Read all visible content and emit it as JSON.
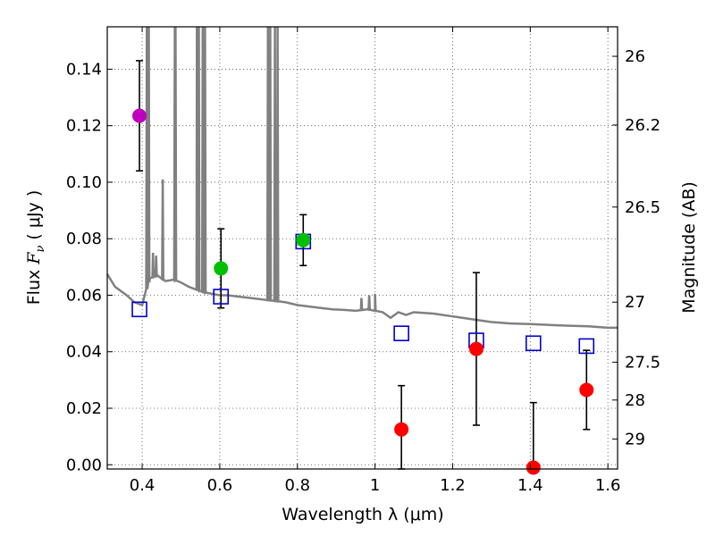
{
  "chart_data": {
    "type": "scatter",
    "title": "",
    "xlabel": "Wavelength  λ (μm)",
    "ylabel_prefix": "Flux  ",
    "ylabel_symbol": "F",
    "ylabel_subscript": "ν",
    "ylabel_units": "  ( μJy )",
    "y2label": "Magnitude (AB)",
    "xlim": [
      0.31,
      1.625
    ],
    "ylim": [
      -0.0015,
      0.155
    ],
    "grid": true,
    "x_ticks": [
      {
        "value": 0.4,
        "label": "0.4"
      },
      {
        "value": 0.6,
        "label": "0.6"
      },
      {
        "value": 0.8,
        "label": "0.8"
      },
      {
        "value": 1.0,
        "label": "1"
      },
      {
        "value": 1.2,
        "label": "1.2"
      },
      {
        "value": 1.4,
        "label": "1.4"
      },
      {
        "value": 1.6,
        "label": "1.6"
      }
    ],
    "y_ticks": [
      {
        "value": 0.0,
        "label": "0.00"
      },
      {
        "value": 0.02,
        "label": "0.02"
      },
      {
        "value": 0.04,
        "label": "0.04"
      },
      {
        "value": 0.06,
        "label": "0.06"
      },
      {
        "value": 0.08,
        "label": "0.08"
      },
      {
        "value": 0.1,
        "label": "0.10"
      },
      {
        "value": 0.12,
        "label": "0.12"
      },
      {
        "value": 0.14,
        "label": "0.14"
      }
    ],
    "y2_ticks": [
      {
        "value": 26,
        "label": "26"
      },
      {
        "value": 26.2,
        "label": "26.2"
      },
      {
        "value": 26.5,
        "label": "26.5"
      },
      {
        "value": 27,
        "label": "27"
      },
      {
        "value": 27.5,
        "label": "27.5"
      },
      {
        "value": 28,
        "label": "28"
      },
      {
        "value": 29,
        "label": "29"
      }
    ],
    "observed": [
      {
        "x": 0.393,
        "y": 0.1235,
        "err": 0.0195,
        "color": "#bf00bf"
      },
      {
        "x": 0.603,
        "y": 0.0695,
        "err": 0.014,
        "color": "#00bf00"
      },
      {
        "x": 0.815,
        "y": 0.0795,
        "err": 0.009,
        "color": "#00bf00"
      },
      {
        "x": 1.068,
        "y": 0.0125,
        "err": 0.0155,
        "color": "#ff0000"
      },
      {
        "x": 1.261,
        "y": 0.041,
        "err": 0.027,
        "color": "#ff0000"
      },
      {
        "x": 1.408,
        "y": -0.001,
        "err": 0.023,
        "color": "#ff0000"
      },
      {
        "x": 1.545,
        "y": 0.0265,
        "err": 0.014,
        "color": "#ff0000"
      }
    ],
    "model_photometry": {
      "color": "#0000cc",
      "points": [
        {
          "x": 0.393,
          "y": 0.055
        },
        {
          "x": 0.603,
          "y": 0.0595
        },
        {
          "x": 0.815,
          "y": 0.079
        },
        {
          "x": 1.068,
          "y": 0.0465
        },
        {
          "x": 1.261,
          "y": 0.044
        },
        {
          "x": 1.408,
          "y": 0.043
        },
        {
          "x": 1.545,
          "y": 0.042
        }
      ]
    },
    "sed_model": {
      "color": "#808080",
      "continuum": [
        [
          0.31,
          0.0675
        ],
        [
          0.33,
          0.063
        ],
        [
          0.36,
          0.06
        ],
        [
          0.38,
          0.0575
        ],
        [
          0.4,
          0.0565
        ],
        [
          0.42,
          0.066
        ],
        [
          0.44,
          0.067
        ],
        [
          0.46,
          0.065
        ],
        [
          0.48,
          0.0655
        ],
        [
          0.5,
          0.0645
        ],
        [
          0.52,
          0.063
        ],
        [
          0.54,
          0.062
        ],
        [
          0.56,
          0.061
        ],
        [
          0.58,
          0.0605
        ],
        [
          0.6,
          0.06
        ],
        [
          0.62,
          0.06
        ],
        [
          0.65,
          0.0595
        ],
        [
          0.68,
          0.059
        ],
        [
          0.71,
          0.0585
        ],
        [
          0.74,
          0.058
        ],
        [
          0.77,
          0.0575
        ],
        [
          0.8,
          0.0565
        ],
        [
          0.83,
          0.056
        ],
        [
          0.86,
          0.0555
        ],
        [
          0.89,
          0.055
        ],
        [
          0.92,
          0.0548
        ],
        [
          0.95,
          0.0545
        ],
        [
          0.98,
          0.055
        ],
        [
          1.0,
          0.0545
        ],
        [
          1.02,
          0.054
        ],
        [
          1.04,
          0.052
        ],
        [
          1.06,
          0.054
        ],
        [
          1.08,
          0.053
        ],
        [
          1.1,
          0.054
        ],
        [
          1.15,
          0.0535
        ],
        [
          1.2,
          0.0525
        ],
        [
          1.25,
          0.0515
        ],
        [
          1.3,
          0.0505
        ],
        [
          1.35,
          0.05
        ],
        [
          1.4,
          0.0498
        ],
        [
          1.45,
          0.0495
        ],
        [
          1.5,
          0.0492
        ],
        [
          1.55,
          0.049
        ],
        [
          1.6,
          0.0485
        ],
        [
          1.625,
          0.0485
        ]
      ],
      "lines": [
        {
          "x": 0.412,
          "y": 0.155
        },
        {
          "x": 0.417,
          "y": 0.155
        },
        {
          "x": 0.428,
          "y": 0.075
        },
        {
          "x": 0.436,
          "y": 0.074
        },
        {
          "x": 0.453,
          "y": 0.101
        },
        {
          "x": 0.484,
          "y": 0.155
        },
        {
          "x": 0.486,
          "y": 0.155
        },
        {
          "x": 0.541,
          "y": 0.155
        },
        {
          "x": 0.546,
          "y": 0.155
        },
        {
          "x": 0.556,
          "y": 0.155
        },
        {
          "x": 0.562,
          "y": 0.155
        },
        {
          "x": 0.724,
          "y": 0.155
        },
        {
          "x": 0.73,
          "y": 0.155
        },
        {
          "x": 0.742,
          "y": 0.155
        },
        {
          "x": 0.749,
          "y": 0.155
        },
        {
          "x": 0.965,
          "y": 0.059
        },
        {
          "x": 0.985,
          "y": 0.06
        },
        {
          "x": 1.0,
          "y": 0.0605
        }
      ]
    }
  }
}
